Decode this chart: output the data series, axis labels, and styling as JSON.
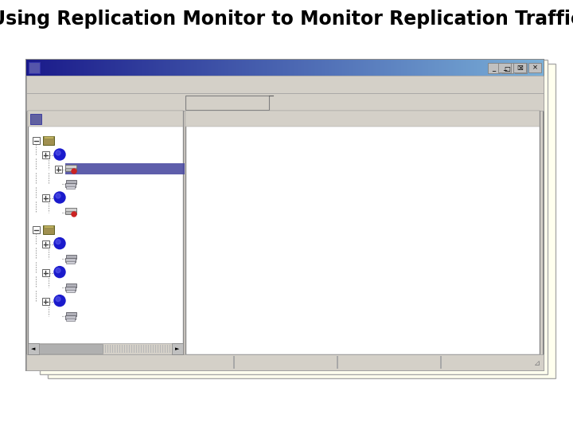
{
  "title": "Using Replication Monitor to Monitor Replication Traffic",
  "title_fontsize": 17,
  "bg_color": "#ffffff",
  "slide_bg": "#ffffee",
  "win_body_bg": "#d4d0c8",
  "titlebar_left": "#1a1a8a",
  "titlebar_right": "#7ab0d8",
  "panel_bg": "#ffffff",
  "highlight_bar": "#4848a0",
  "icon_blue": "#1a1acc",
  "icon_red": "#cc2222",
  "tree_line": "#808080",
  "status_bg": "#d4d0c8",
  "scrollbar_bg": "#d4d0c8",
  "scrollbar_thumb": "#b0b0b0"
}
